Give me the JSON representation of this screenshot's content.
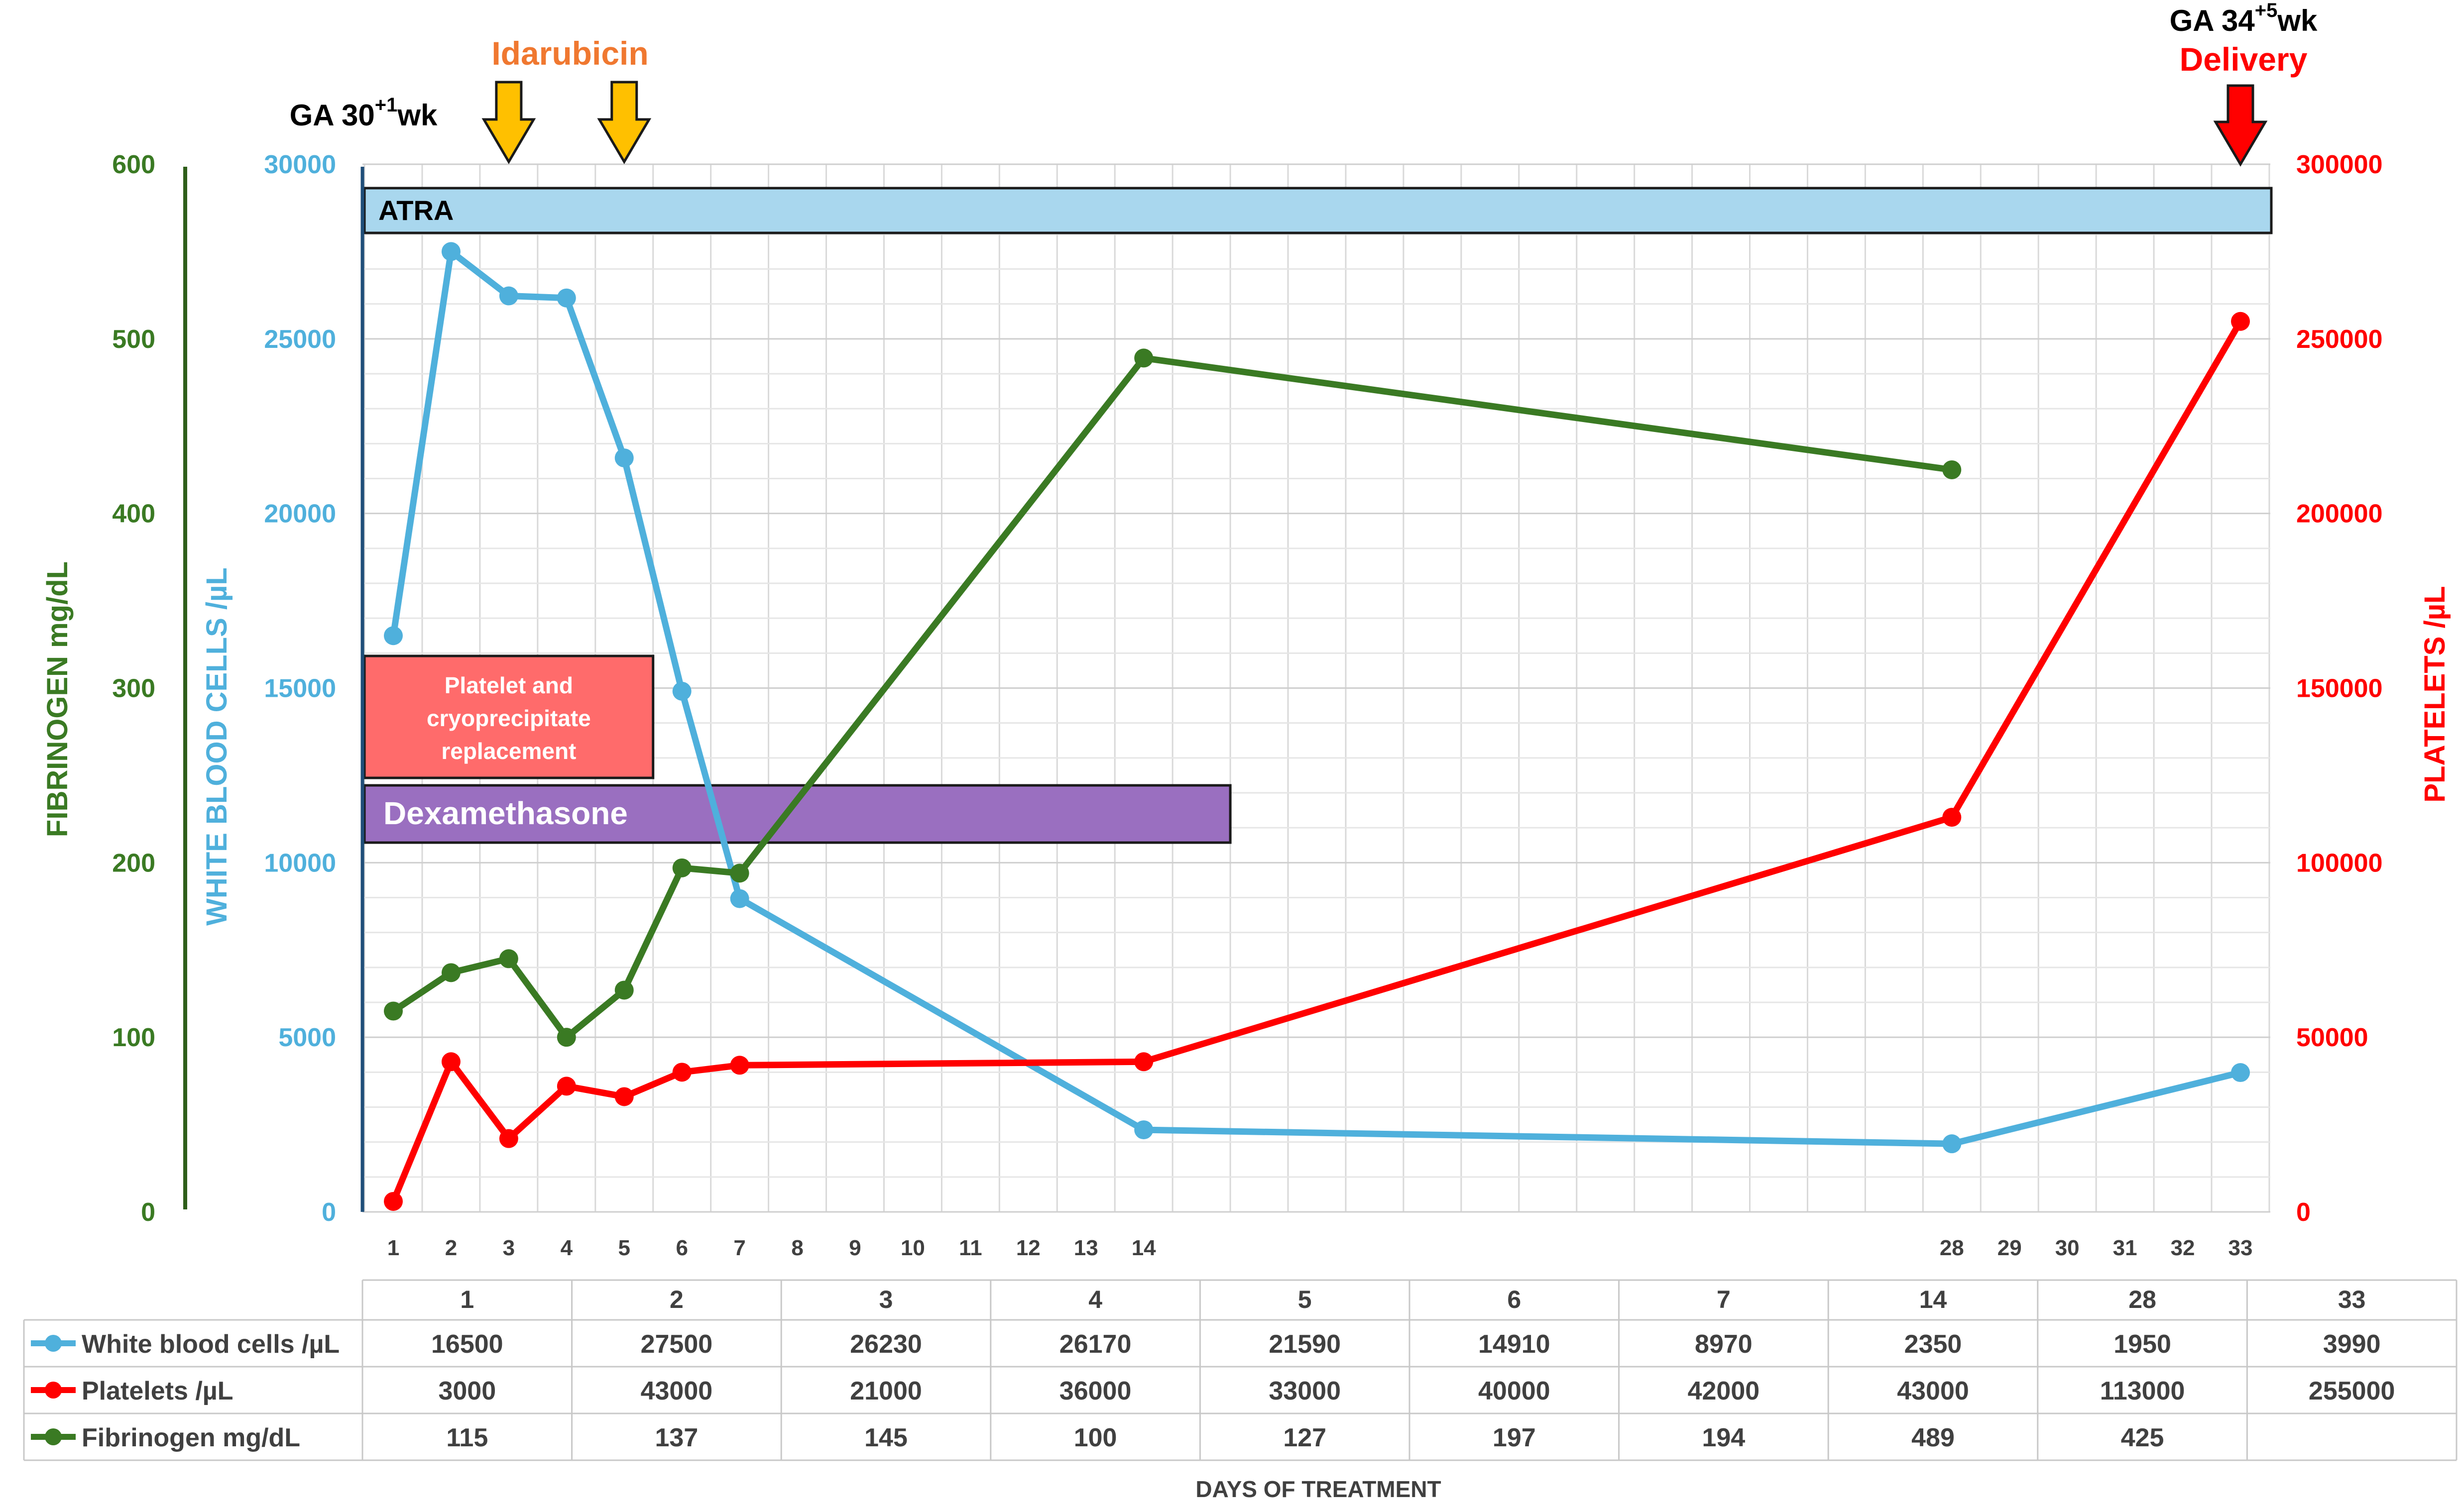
{
  "chart_data": {
    "type": "line",
    "title": "",
    "xlabel": "DAYS OF TREATMENT",
    "x_positions": [
      1,
      2,
      3,
      4,
      5,
      6,
      7,
      8,
      9,
      10,
      11,
      12,
      13,
      14,
      15,
      16,
      17,
      18,
      19,
      20,
      21,
      22,
      23,
      24,
      25,
      26,
      27,
      28,
      29,
      30,
      31,
      32,
      33
    ],
    "x_tick_labels": [
      "1",
      "2",
      "3",
      "4",
      "5",
      "6",
      "7",
      "8",
      "9",
      "10",
      "11",
      "12",
      "13",
      "14",
      "",
      "",
      "",
      "",
      "",
      "",
      "",
      "",
      "",
      "",
      "",
      "",
      "",
      "28",
      "29",
      "30",
      "31",
      "32",
      "33"
    ],
    "axes": {
      "fibrinogen": {
        "label": "FIBRINOGEN mg/dL",
        "min": 0,
        "max": 600,
        "ticks": [
          "0",
          "100",
          "200",
          "300",
          "400",
          "500",
          "600"
        ],
        "color": "#3A7A23"
      },
      "wbc": {
        "label": "WHITE BLOOD CELLS /µL",
        "min": 0,
        "max": 30000,
        "ticks": [
          "0",
          "5000",
          "10000",
          "15000",
          "20000",
          "25000",
          "30000"
        ],
        "color": "#4FB0DC"
      },
      "platelets": {
        "label": "PLATELETS /µL",
        "min": 0,
        "max": 300000,
        "ticks": [
          "0",
          "50000",
          "100000",
          "150000",
          "200000",
          "250000",
          "300000"
        ],
        "color": "#FF0000"
      }
    },
    "series": [
      {
        "name": "White blood cells /µL",
        "axis": "wbc",
        "color": "#4FB0DC",
        "x": [
          1,
          2,
          3,
          4,
          5,
          6,
          7,
          14,
          28,
          33
        ],
        "values": [
          16500,
          27500,
          26230,
          26170,
          21590,
          14910,
          8970,
          2350,
          1950,
          3990
        ]
      },
      {
        "name": "Platelets /µL",
        "axis": "platelets",
        "color": "#FF0000",
        "x": [
          1,
          2,
          3,
          4,
          5,
          6,
          7,
          14,
          28,
          33
        ],
        "values": [
          3000,
          43000,
          21000,
          36000,
          33000,
          40000,
          42000,
          43000,
          113000,
          255000
        ]
      },
      {
        "name": "Fibrinogen mg/dL",
        "axis": "fibrinogen",
        "color": "#3A7A23",
        "x": [
          1,
          2,
          3,
          4,
          5,
          6,
          7,
          14,
          28
        ],
        "values": [
          115,
          137,
          145,
          100,
          127,
          197,
          194,
          489,
          425
        ]
      }
    ],
    "treatment_bars": [
      {
        "label": "ATRA",
        "start": 0.5,
        "end": 33.5,
        "color": "#A9D7EE",
        "text_color": "#000000"
      },
      {
        "label": "Platelet and cryoprecipitate replacement",
        "lines": [
          "Platelet and",
          "cryoprecipitate",
          "replacement"
        ],
        "start": 0.5,
        "end": 5.5,
        "color": "#FF6B6B",
        "text_color": "#ffffff"
      },
      {
        "label": "Dexamethasone",
        "start": 0.5,
        "end": 15.5,
        "color": "#9A6FC0",
        "text_color": "#ffffff"
      }
    ],
    "annotations": {
      "ga_start": {
        "prefix": "GA 30",
        "sup": "+1",
        "suffix": "wk"
      },
      "idarubicin": {
        "label": "Idarubicin",
        "days": [
          3,
          5
        ],
        "color": "#F07830",
        "arrow_color": "#FFC000"
      },
      "ga_delivery": {
        "prefix": "GA 34",
        "sup": "+5",
        "suffix": "wk"
      },
      "delivery": {
        "label": "Delivery",
        "day": 33,
        "color": "#FF0000",
        "arrow_color": "#FF0000"
      }
    },
    "table": {
      "columns": [
        "1",
        "2",
        "3",
        "4",
        "5",
        "6",
        "7",
        "14",
        "28",
        "33"
      ],
      "rows": [
        {
          "label": "White blood cells /µL",
          "color": "#4FB0DC",
          "values": [
            "16500",
            "27500",
            "26230",
            "26170",
            "21590",
            "14910",
            "8970",
            "2350",
            "1950",
            "3990"
          ]
        },
        {
          "label": "Platelets /µL",
          "color": "#FF0000",
          "values": [
            "3000",
            "43000",
            "21000",
            "36000",
            "33000",
            "40000",
            "42000",
            "43000",
            "113000",
            "255000"
          ]
        },
        {
          "label": "Fibrinogen mg/dL",
          "color": "#3A7A23",
          "values": [
            "115",
            "137",
            "145",
            "100",
            "127",
            "197",
            "194",
            "489",
            "425",
            ""
          ]
        }
      ]
    }
  }
}
